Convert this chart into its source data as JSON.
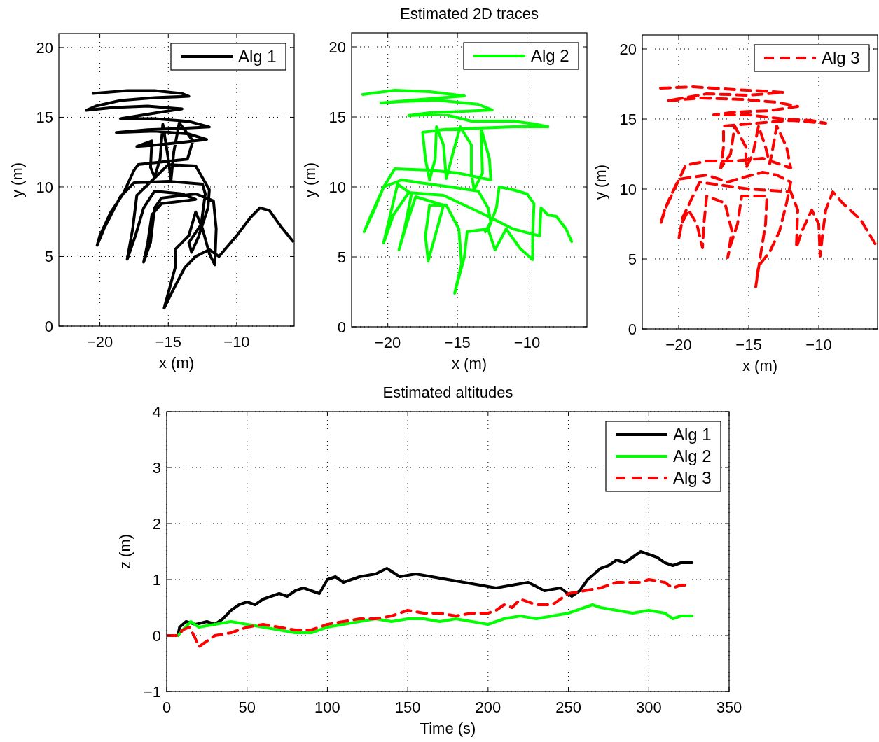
{
  "chart_data": [
    {
      "type": "line",
      "xlabel": "x (m)",
      "ylabel": "y (m)",
      "xlim": [
        -23,
        -5.8
      ],
      "ylim": [
        0,
        21
      ],
      "xticks": [
        -20,
        -15,
        -10
      ],
      "yticks": [
        0,
        5,
        10,
        15,
        20
      ],
      "grid": true,
      "legend": "top right",
      "series": [
        {
          "name": "Alg 1",
          "color": "#000000",
          "line_style": "solid",
          "x": [
            -20.5,
            -18,
            -16,
            -14,
            -13.5,
            -16,
            -18.5,
            -20.3,
            -21,
            -19,
            -16.5,
            -14,
            -16,
            -18.5,
            -16,
            -13.5,
            -12,
            -14,
            -16.5,
            -18.8,
            -16,
            -13.5,
            -12.2,
            -14,
            -16,
            -17.3,
            -16.2,
            -16.3,
            -16,
            -15.6,
            -15.4,
            -15,
            -14.8,
            -14.6,
            -14.2,
            -13.2,
            -13.6,
            -17.2,
            -17.5,
            -18.3,
            -19.2,
            -20,
            -20.2,
            -19.7,
            -18.5,
            -17.5,
            -15,
            -12.5,
            -12.3,
            -12.6,
            -13.5,
            -13.3,
            -12.8,
            -12.1,
            -12,
            -13,
            -15,
            -17.3,
            -17.6,
            -18,
            -17.4,
            -16.8,
            -16,
            -14,
            -13,
            -15.5,
            -16.2,
            -16.5,
            -16.8,
            -16.3,
            -16,
            -15.5,
            -13,
            -11.7,
            -11.5,
            -11.6,
            -12,
            -12.5,
            -13,
            -13.5,
            -14.5,
            -14.5,
            -15.3,
            -14.7,
            -13.8,
            -13,
            -12,
            -11.3,
            -10,
            -9,
            -8.3,
            -7.6,
            -6.8,
            -5.9
          ],
          "values": [
            16.7,
            16.9,
            16.9,
            16.7,
            16.5,
            16.4,
            16.2,
            15.8,
            15.5,
            15.7,
            15.8,
            15.6,
            15.3,
            14.9,
            14.9,
            14.7,
            14.3,
            14.2,
            14.1,
            13.9,
            14,
            13.8,
            13.4,
            13.2,
            13,
            12.9,
            13.3,
            11.4,
            10.7,
            12,
            14.5,
            12,
            10.5,
            12.5,
            14.6,
            13.3,
            12,
            11.6,
            11.2,
            9.5,
            8.2,
            6.5,
            5.8,
            7,
            9.3,
            10.3,
            10.4,
            10.2,
            9.5,
            7.3,
            6,
            5.3,
            6.4,
            8.5,
            9.8,
            11.5,
            11.6,
            9.4,
            7,
            4.8,
            6.5,
            8.5,
            9.7,
            9.5,
            9.1,
            8.8,
            8,
            6,
            4.6,
            6,
            8.5,
            9.2,
            9.5,
            9,
            7,
            4.4,
            5.2,
            7,
            8.2,
            6.5,
            5.5,
            4.2,
            1.3,
            2.5,
            4.2,
            5,
            5.5,
            5,
            6.5,
            7.8,
            8.5,
            8.3,
            7.2,
            6.1
          ]
        }
      ]
    },
    {
      "type": "line",
      "title": "Estimated 2D traces",
      "xlabel": "x (m)",
      "ylabel": "y (m)",
      "xlim": [
        -22.6,
        -5.7
      ],
      "ylim": [
        0,
        21
      ],
      "xticks": [
        -20,
        -15,
        -10
      ],
      "yticks": [
        0,
        5,
        10,
        15,
        20
      ],
      "grid": true,
      "legend": "top right",
      "series": [
        {
          "name": "Alg 2",
          "color": "#00ff00",
          "line_style": "solid",
          "x": [
            -21.8,
            -19.5,
            -17,
            -14.5,
            -17,
            -20.5,
            -19,
            -16.5,
            -13.5,
            -12.5,
            -14.5,
            -17,
            -18.5,
            -16,
            -14,
            -11,
            -9.5,
            -8.5,
            -11,
            -13.5,
            -16,
            -17.5,
            -17.3,
            -17,
            -16.6,
            -16.5,
            -16,
            -15.8,
            -15.3,
            -14.8,
            -14,
            -14,
            -13.8,
            -13.2,
            -13.3,
            -12.7,
            -12.6,
            -15,
            -17,
            -19.5,
            -20.3,
            -21,
            -21.7,
            -21.2,
            -20.3,
            -19,
            -17,
            -15.5,
            -13.5,
            -12.8,
            -12.6,
            -13,
            -12.7,
            -12.2,
            -12,
            -11,
            -10,
            -9.5,
            -9.6,
            -9.6,
            -10.5,
            -11.5,
            -12.3,
            -12.8,
            -14.3,
            -14.5,
            -15.2,
            -14.7,
            -14.9,
            -15.8,
            -17,
            -17.3,
            -17.1,
            -16.6,
            -16,
            -18,
            -18.6,
            -19.2,
            -18.8,
            -18.3,
            -19.3,
            -20.3,
            -19.6,
            -18.5,
            -16,
            -13,
            -11,
            -9.1,
            -9,
            -8.5,
            -7.9,
            -7.2,
            -6.8
          ],
          "values": [
            16.6,
            16.9,
            16.8,
            16.5,
            16.3,
            16,
            16.1,
            16.2,
            15.9,
            15.5,
            15.4,
            15.3,
            15.1,
            15.2,
            14.7,
            14.7,
            14.5,
            14.3,
            14.3,
            14.2,
            14.1,
            13.9,
            12,
            10.5,
            12,
            14.3,
            13,
            10.6,
            12.5,
            14.3,
            13,
            11,
            9.8,
            11,
            14.2,
            12,
            10.5,
            11,
            11.2,
            11.3,
            10,
            8.3,
            6.8,
            8,
            10,
            10.5,
            10.2,
            10,
            9.7,
            8.5,
            7.5,
            6.8,
            7.2,
            8.5,
            10,
            9.8,
            9.5,
            8.8,
            6.5,
            4.8,
            5.6,
            7,
            5.5,
            7,
            6.8,
            5,
            2.4,
            4.5,
            7,
            8.7,
            8.7,
            6.5,
            4.7,
            6.5,
            8.7,
            9.3,
            7.5,
            5.5,
            7,
            9.5,
            10.2,
            6,
            8,
            9.6,
            9.4,
            8,
            7,
            6.5,
            8.5,
            8,
            7.9,
            7,
            6.1
          ]
        }
      ]
    },
    {
      "type": "line",
      "xlabel": "x (m)",
      "ylabel": "y (m)",
      "xlim": [
        -22.6,
        -5.8
      ],
      "ylim": [
        0,
        21
      ],
      "xticks": [
        -20,
        -15,
        -10
      ],
      "yticks": [
        0,
        5,
        10,
        15,
        20
      ],
      "grid": true,
      "legend": "top right",
      "series": [
        {
          "name": "Alg 3",
          "color": "#ff0000",
          "line_style": "dashed",
          "x": [
            -21.3,
            -19,
            -16,
            -14,
            -12.5,
            -15,
            -18,
            -20.8,
            -18.5,
            -15.5,
            -13,
            -11.5,
            -13.5,
            -16,
            -17.5,
            -15,
            -12.5,
            -10.5,
            -9.5,
            -12,
            -14.5,
            -16.8,
            -16.8,
            -17,
            -16.3,
            -16,
            -15.2,
            -15.2,
            -14.7,
            -14.3,
            -13.8,
            -13.5,
            -13.3,
            -13,
            -12.3,
            -12,
            -14,
            -16,
            -18,
            -19.5,
            -20.3,
            -21,
            -21.3,
            -20.8,
            -20,
            -18,
            -16.5,
            -15.5,
            -14,
            -13,
            -12,
            -12.3,
            -12.8,
            -13.5,
            -14.3,
            -14.5,
            -14.2,
            -13.8,
            -13.7,
            -15.5,
            -15.8,
            -16.3,
            -16.5,
            -16.2,
            -16.7,
            -18,
            -18.2,
            -18.3,
            -18.7,
            -19.3,
            -19.8,
            -20,
            -19.7,
            -18.5,
            -15,
            -12,
            -11.5,
            -11.6,
            -11.2,
            -10.5,
            -10,
            -9.9,
            -9.7,
            -9.5,
            -9,
            -8.3,
            -7,
            -5.8
          ],
          "values": [
            17.2,
            17.3,
            17.1,
            17,
            16.9,
            16.7,
            16.8,
            16.3,
            16.5,
            16.4,
            16.2,
            15.9,
            15.6,
            15.5,
            15.3,
            15.3,
            15,
            14.9,
            14.7,
            14.9,
            14.7,
            14.5,
            13,
            11.5,
            12.5,
            14.5,
            13,
            11.5,
            12.5,
            14.5,
            13,
            11.8,
            12.8,
            14.5,
            13,
            11.5,
            12.2,
            12,
            12,
            11.7,
            10,
            8.5,
            7.5,
            9,
            10.7,
            11,
            10.5,
            10.8,
            11.2,
            11,
            10.5,
            9,
            7,
            5.5,
            4.5,
            3,
            5,
            7.5,
            9.5,
            9.5,
            7.5,
            6,
            5.1,
            7,
            9,
            9.5,
            7.5,
            5.8,
            7.5,
            8.5,
            7.5,
            6.4,
            8,
            10.5,
            10,
            9.8,
            8.5,
            5.8,
            7,
            8.5,
            7.5,
            5.2,
            7,
            8.5,
            9.8,
            9,
            7.8,
            5.8
          ]
        }
      ]
    },
    {
      "type": "line",
      "title": "Estimated altitudes",
      "xlabel": "Time (s)",
      "ylabel": "z (m)",
      "xlim": [
        0,
        350
      ],
      "ylim": [
        -1,
        4
      ],
      "xticks": [
        0,
        50,
        100,
        150,
        200,
        250,
        300,
        350
      ],
      "yticks": [
        -1,
        0,
        1,
        2,
        3,
        4
      ],
      "grid": true,
      "legend": "top right",
      "series": [
        {
          "name": "Alg 1",
          "color": "#000000",
          "line_style": "solid",
          "x": [
            0,
            7,
            8,
            12,
            18,
            25,
            30,
            35,
            40,
            45,
            50,
            55,
            60,
            65,
            70,
            75,
            80,
            85,
            90,
            95,
            100,
            105,
            110,
            120,
            130,
            137,
            145,
            155,
            165,
            175,
            185,
            195,
            205,
            215,
            225,
            235,
            245,
            252,
            257,
            262,
            266,
            270,
            275,
            280,
            285,
            290,
            295,
            300,
            305,
            310,
            315,
            320,
            327
          ],
          "values": [
            0,
            0,
            0.15,
            0.25,
            0.2,
            0.25,
            0.2,
            0.3,
            0.45,
            0.55,
            0.6,
            0.55,
            0.65,
            0.7,
            0.75,
            0.7,
            0.8,
            0.85,
            0.8,
            0.75,
            1.0,
            1.05,
            0.95,
            1.05,
            1.1,
            1.2,
            1.05,
            1.1,
            1.05,
            1.0,
            0.95,
            0.9,
            0.85,
            0.9,
            0.95,
            0.8,
            0.85,
            0.7,
            0.8,
            1.0,
            1.1,
            1.2,
            1.25,
            1.35,
            1.3,
            1.4,
            1.5,
            1.45,
            1.4,
            1.3,
            1.25,
            1.3,
            1.3
          ]
        },
        {
          "name": "Alg 2",
          "color": "#00ff00",
          "line_style": "solid",
          "x": [
            0,
            7,
            10,
            15,
            20,
            30,
            40,
            50,
            60,
            70,
            80,
            90,
            100,
            110,
            120,
            130,
            140,
            150,
            160,
            170,
            180,
            190,
            200,
            210,
            220,
            230,
            240,
            250,
            260,
            265,
            270,
            280,
            290,
            300,
            310,
            315,
            320,
            327
          ],
          "values": [
            0,
            0,
            0.1,
            0.25,
            0.15,
            0.2,
            0.25,
            0.2,
            0.15,
            0.1,
            0.05,
            0.05,
            0.15,
            0.2,
            0.25,
            0.3,
            0.25,
            0.3,
            0.3,
            0.25,
            0.3,
            0.25,
            0.2,
            0.3,
            0.35,
            0.3,
            0.35,
            0.4,
            0.5,
            0.55,
            0.5,
            0.45,
            0.4,
            0.45,
            0.4,
            0.3,
            0.35,
            0.35
          ]
        },
        {
          "name": "Alg 3",
          "color": "#ff0000",
          "line_style": "dashed",
          "x": [
            0,
            7,
            10,
            14,
            17,
            20,
            25,
            30,
            40,
            50,
            60,
            70,
            80,
            90,
            100,
            110,
            120,
            130,
            140,
            150,
            160,
            170,
            180,
            190,
            200,
            205,
            210,
            215,
            220,
            230,
            240,
            250,
            260,
            270,
            280,
            290,
            295,
            300,
            310,
            315,
            320,
            325
          ],
          "values": [
            0,
            0,
            0.1,
            0.15,
            0,
            -0.2,
            -0.1,
            0,
            0.05,
            0.15,
            0.2,
            0.15,
            0.1,
            0.1,
            0.2,
            0.25,
            0.3,
            0.3,
            0.35,
            0.45,
            0.4,
            0.4,
            0.35,
            0.4,
            0.4,
            0.45,
            0.55,
            0.5,
            0.65,
            0.55,
            0.55,
            0.75,
            0.8,
            0.85,
            0.95,
            0.95,
            0.95,
            1.0,
            0.95,
            0.85,
            0.9,
            0.9
          ]
        }
      ]
    }
  ]
}
